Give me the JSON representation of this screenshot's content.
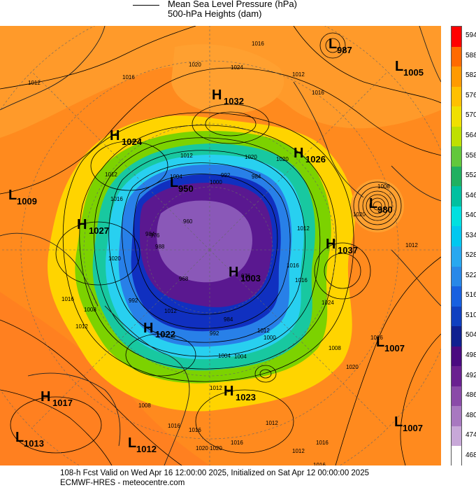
{
  "legend": {
    "line1": "Mean Sea Level Pressure (hPa)",
    "line2": "500-hPa Heights (dam)"
  },
  "colorbar": {
    "labels": [
      "594",
      "588",
      "582",
      "576",
      "570",
      "564",
      "558",
      "552",
      "546",
      "540",
      "534",
      "528",
      "522",
      "516",
      "510",
      "504",
      "498",
      "492",
      "486",
      "480",
      "474",
      "468"
    ],
    "colors": [
      "#ff0000",
      "#ff6a00",
      "#ff9a00",
      "#ffc000",
      "#f0e000",
      "#bfe000",
      "#62c83c",
      "#20b060",
      "#00c0a0",
      "#00e0e0",
      "#00c8f0",
      "#28a8f0",
      "#2888e8",
      "#1860e0",
      "#1040c0",
      "#102090",
      "#4a0a80",
      "#6a2090",
      "#8a4aa8",
      "#a878c0",
      "#c8a8d8",
      "#ffffff"
    ]
  },
  "map_colors": {
    "ocean_orange": "#ff8a1e",
    "ring_yellow": "#ffd400",
    "ring_green": "#7cd200",
    "ring_teal": "#18c8a0",
    "ring_cyan": "#28d0f0",
    "ring_blue": "#2880e8",
    "core_blue": "#1030c0",
    "core_purple": "#5a1890",
    "core_light": "#8a58b8"
  },
  "pressure_systems": [
    {
      "type": "L",
      "value": "987"
    },
    {
      "type": "L",
      "value": "1005"
    },
    {
      "type": "H",
      "value": "1032"
    },
    {
      "type": "H",
      "value": "1024"
    },
    {
      "type": "H",
      "value": "1026"
    },
    {
      "type": "L",
      "value": "950"
    },
    {
      "type": "L",
      "value": "1009"
    },
    {
      "type": "L",
      "value": "980"
    },
    {
      "type": "H",
      "value": "1027"
    },
    {
      "type": "H",
      "value": "1037"
    },
    {
      "type": "H",
      "value": "1003"
    },
    {
      "type": "H",
      "value": "1022"
    },
    {
      "type": "L",
      "value": "1007"
    },
    {
      "type": "H",
      "value": "1017"
    },
    {
      "type": "H",
      "value": "1023"
    },
    {
      "type": "L",
      "value": "1013"
    },
    {
      "type": "L",
      "value": "1012"
    },
    {
      "type": "L",
      "value": "1007"
    }
  ],
  "contour_labels": [
    "1016",
    "1024",
    "1020",
    "1016",
    "1012",
    "1012",
    "1016",
    "1020",
    "1008",
    "1012",
    "1024",
    "1012",
    "1016",
    "1020",
    "1008",
    "1012",
    "1016",
    "1020",
    "1020",
    "1012",
    "1004",
    "1000",
    "992",
    "984",
    "976",
    "960",
    "1016",
    "1012",
    "1008",
    "1012",
    "1012",
    "1016",
    "1020",
    "1004",
    "1000",
    "1004",
    "1012",
    "1016",
    "992",
    "984",
    "976",
    "968",
    "1016",
    "1016",
    "1012",
    "984",
    "988",
    "992",
    "1020",
    "1016",
    "1012",
    "1008",
    "1016",
    "1020",
    "1016"
  ],
  "footer": {
    "line1": "108-h Fcst Valid on Wed Apr 16 12:00:00 2025, Initialized on Sat Apr 12 00:00:00 2025",
    "line2": "ECMWF-HRES  - meteocentre.com"
  }
}
